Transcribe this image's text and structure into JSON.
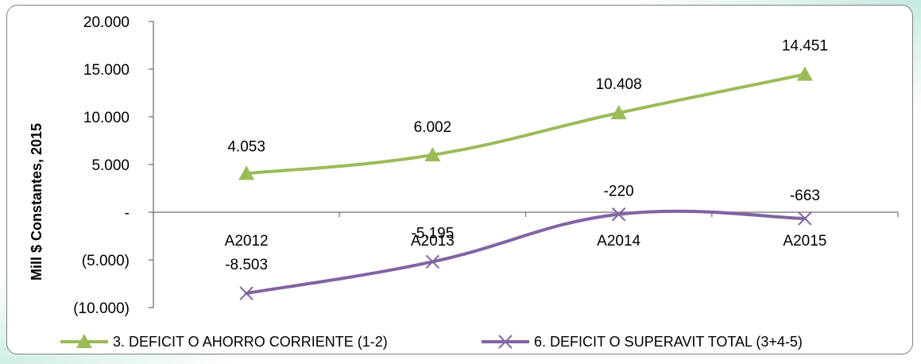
{
  "chart_data": {
    "type": "line",
    "categories": [
      "A2012",
      "A2013",
      "A2014",
      "A2015"
    ],
    "ylabel": "Mill $ Constantes, 2015",
    "ylim": [
      -10000,
      20000
    ],
    "yticks": [
      {
        "value": 20000,
        "label": "20.000"
      },
      {
        "value": 15000,
        "label": "15.000"
      },
      {
        "value": 10000,
        "label": "10.000"
      },
      {
        "value": 5000,
        "label": "5.000"
      },
      {
        "value": 0,
        "label": "-"
      },
      {
        "value": -5000,
        "label": "(5.000)"
      },
      {
        "value": -10000,
        "label": "(10.000)"
      }
    ],
    "grid": false,
    "legend_position": "bottom",
    "series": [
      {
        "name": "3. DEFICIT O AHORRO CORRIENTE (1-2)",
        "values": [
          4053,
          6002,
          10408,
          14451
        ],
        "labels": [
          "4.053",
          "6.002",
          "10.408",
          "14.451"
        ],
        "color": "#9BBB59",
        "marker": "triangle"
      },
      {
        "name": "6. DEFICIT O SUPERAVIT TOTAL (3+4-5)",
        "values": [
          -8503,
          -5195,
          -220,
          -663
        ],
        "labels": [
          "-8.503",
          "-5.195",
          "-220",
          "-663"
        ],
        "color": "#8064A2",
        "marker": "x"
      }
    ]
  }
}
